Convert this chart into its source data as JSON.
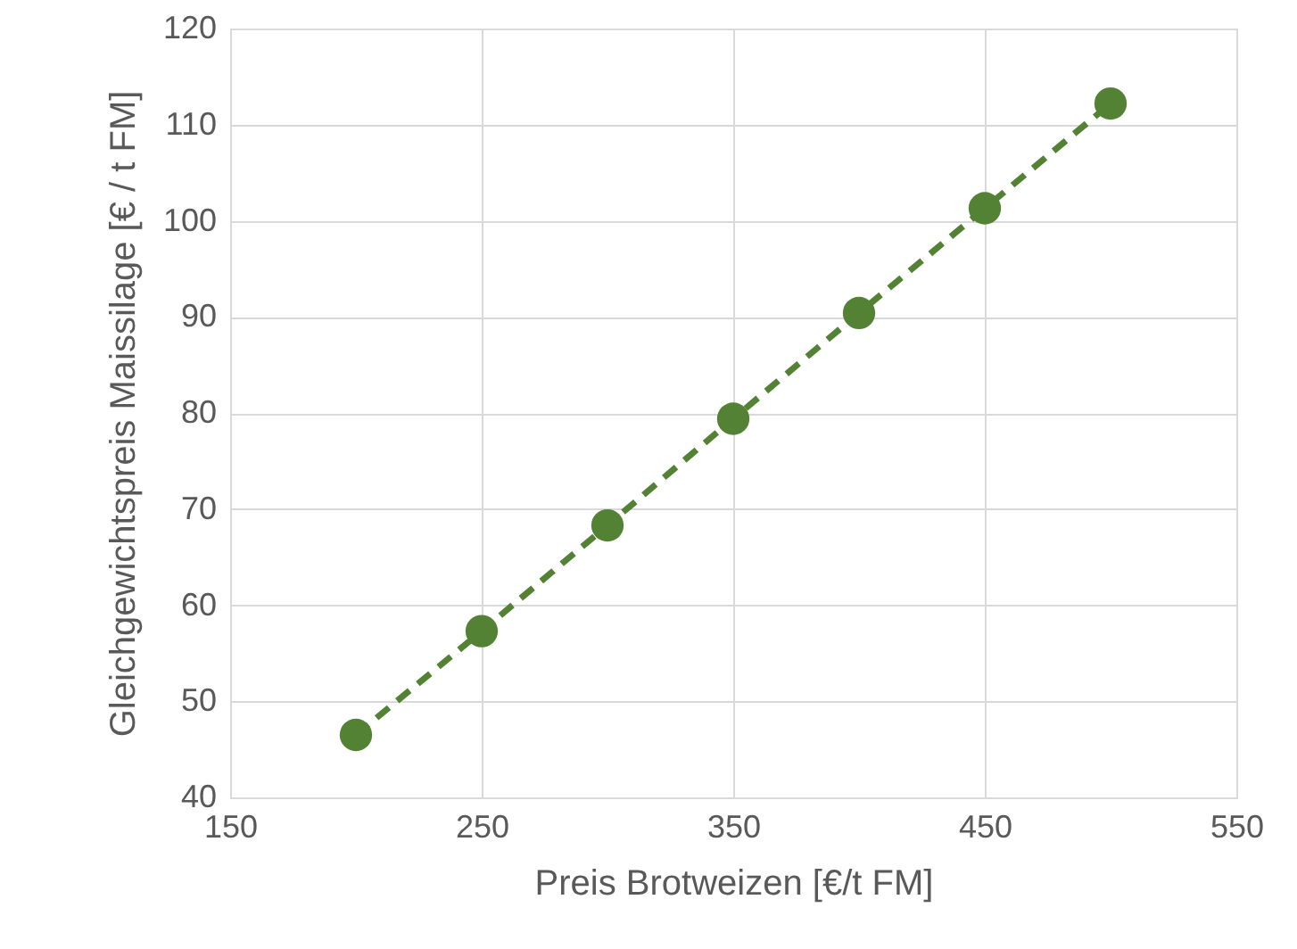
{
  "chart_data": {
    "type": "line",
    "xlabel": "Preis Brotweizen [€/t FM]",
    "ylabel": "Gleichgewichtspreis Maissilage [€ / t FM]",
    "x": [
      200,
      250,
      300,
      350,
      400,
      450,
      500
    ],
    "series": [
      {
        "color": "#548235",
        "values": [
          46.5,
          57.3,
          68.3,
          79.4,
          90.4,
          101.3,
          112.2
        ]
      }
    ],
    "xlim": [
      150,
      550
    ],
    "xticks": [
      150,
      250,
      350,
      450,
      550
    ],
    "ylim": [
      40,
      120
    ],
    "yticks": [
      40,
      50,
      60,
      70,
      80,
      90,
      100,
      110,
      120
    ],
    "grid": true,
    "marker": "circle",
    "line_style": "dashed"
  }
}
